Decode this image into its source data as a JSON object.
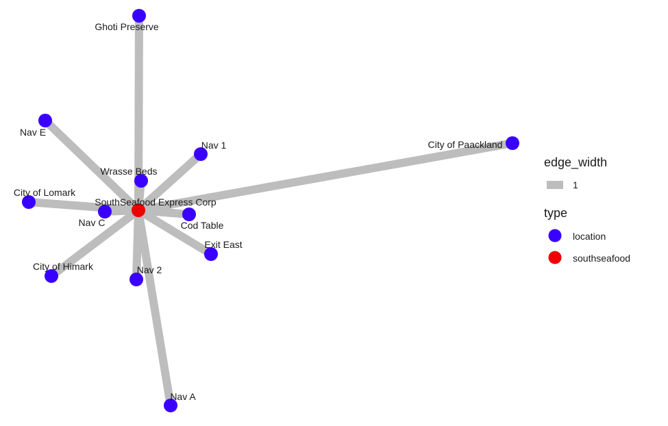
{
  "colors": {
    "location": "#3a00ff",
    "southseafood": "#ee0000",
    "edge": "#bdbdbd"
  },
  "graph": {
    "center": "SouthSeafood Express Corp",
    "nodes": [
      {
        "id": "SouthSeafood Express Corp",
        "type": "southseafood"
      },
      {
        "id": "Ghoti Preserve",
        "type": "location"
      },
      {
        "id": "Nav E",
        "type": "location"
      },
      {
        "id": "Nav 1",
        "type": "location"
      },
      {
        "id": "City of Paackland",
        "type": "location"
      },
      {
        "id": "Wrasse Beds",
        "type": "location"
      },
      {
        "id": "City of Lomark",
        "type": "location"
      },
      {
        "id": "Nav C",
        "type": "location"
      },
      {
        "id": "Cod Table",
        "type": "location"
      },
      {
        "id": "Exit East",
        "type": "location"
      },
      {
        "id": "City of Himark",
        "type": "location"
      },
      {
        "id": "Nav 2",
        "type": "location"
      },
      {
        "id": "Nav A",
        "type": "location"
      }
    ],
    "edges": [
      {
        "from": "SouthSeafood Express Corp",
        "to": "Ghoti Preserve"
      },
      {
        "from": "SouthSeafood Express Corp",
        "to": "Nav E"
      },
      {
        "from": "SouthSeafood Express Corp",
        "to": "Nav 1"
      },
      {
        "from": "SouthSeafood Express Corp",
        "to": "City of Paackland"
      },
      {
        "from": "SouthSeafood Express Corp",
        "to": "Wrasse Beds"
      },
      {
        "from": "SouthSeafood Express Corp",
        "to": "City of Lomark"
      },
      {
        "from": "SouthSeafood Express Corp",
        "to": "Nav C"
      },
      {
        "from": "SouthSeafood Express Corp",
        "to": "Cod Table"
      },
      {
        "from": "SouthSeafood Express Corp",
        "to": "Exit East"
      },
      {
        "from": "SouthSeafood Express Corp",
        "to": "City of Himark"
      },
      {
        "from": "SouthSeafood Express Corp",
        "to": "Nav 2"
      },
      {
        "from": "SouthSeafood Express Corp",
        "to": "Nav A"
      }
    ]
  },
  "legend": {
    "edge_width_title": "edge_width",
    "edge_width_value": "1",
    "type_title": "type",
    "type_items": [
      {
        "label": "location",
        "type": "location"
      },
      {
        "label": "southseafood",
        "type": "southseafood"
      }
    ]
  }
}
